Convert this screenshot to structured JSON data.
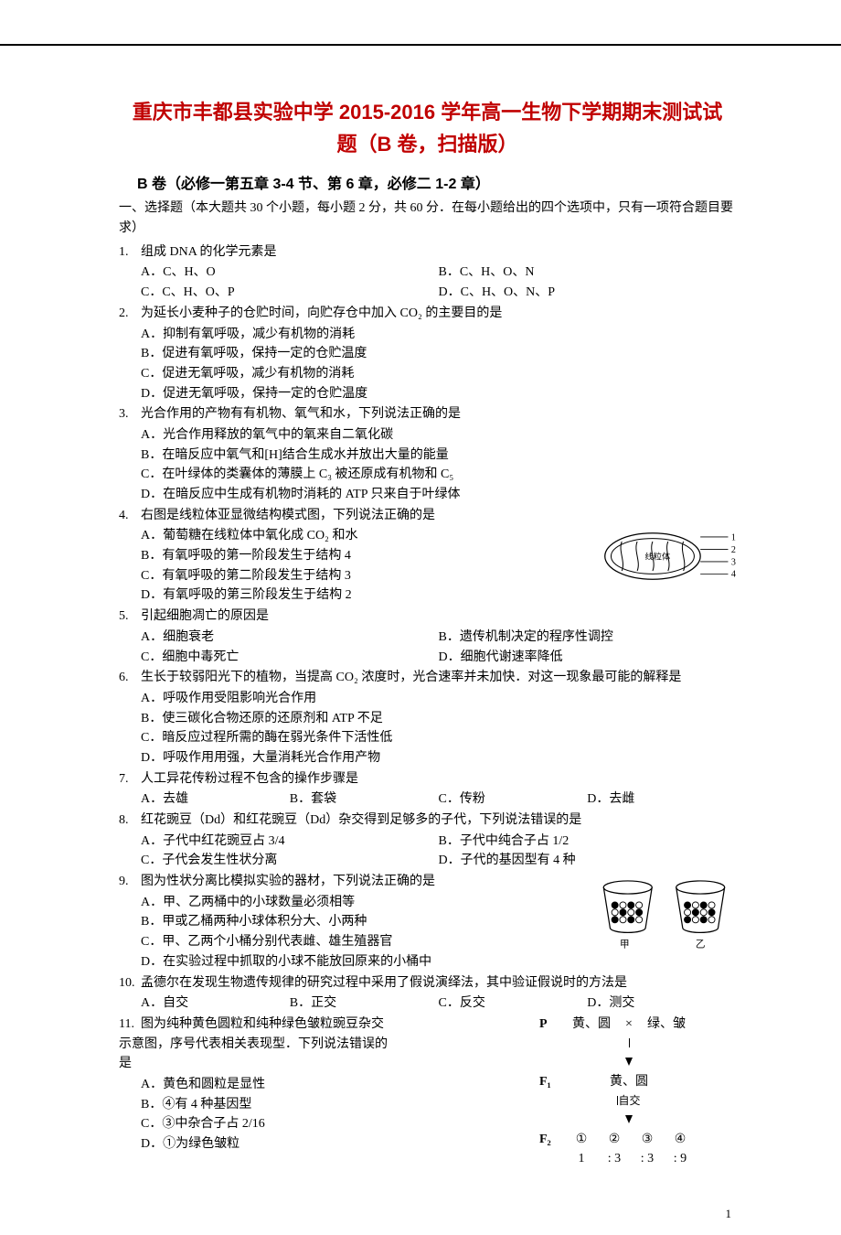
{
  "title_line1": "重庆市丰都县实验中学 2015-2016 学年高一生物下学期期末测试试",
  "title_line2": "题（B 卷，扫描版）",
  "section": "B 卷（必修一第五章 3-4 节、第 6 章，必修二 1-2 章）",
  "instruction": "一、选择题（本大题共 30 个小题，每小题 2 分，共 60 分．在每小题给出的四个选项中，只有一项符合题目要求）",
  "page_number": "1",
  "colors": {
    "title": "#c00000",
    "text": "#000000",
    "rule": "#000000",
    "background": "#ffffff"
  },
  "questions": [
    {
      "n": "1.",
      "stem": "组成 DNA 的化学元素是",
      "opts": [
        "A．C、H、O",
        "B．C、H、O、N",
        "C．C、H、O、P",
        "D．C、H、O、N、P"
      ],
      "layout": "half"
    },
    {
      "n": "2.",
      "stem": "为延长小麦种子的仓贮时间，向贮存仓中加入 CO₂ 的主要目的是",
      "opts": [
        "A．抑制有氧呼吸，减少有机物的消耗",
        "B．促进有氧呼吸，保持一定的仓贮温度",
        "C．促进无氧呼吸，减少有机物的消耗",
        "D．促进无氧呼吸，保持一定的仓贮温度"
      ],
      "layout": "full"
    },
    {
      "n": "3.",
      "stem": "光合作用的产物有有机物、氧气和水，下列说法正确的是",
      "opts": [
        "A．光合作用释放的氧气中的氧来自二氧化碳",
        "B．在暗反应中氧气和[H]结合生成水并放出大量的能量",
        "C．在叶绿体的类囊体的薄膜上 C₃ 被还原成有机物和 C₅",
        "D．在暗反应中生成有机物时消耗的 ATP 只来自于叶绿体"
      ],
      "layout": "full"
    },
    {
      "n": "4.",
      "stem": "右图是线粒体亚显微结构模式图，下列说法正确的是",
      "opts": [
        "A．葡萄糖在线粒体中氧化成 CO₂ 和水",
        "B．有氧呼吸的第一阶段发生于结构 4",
        "C．有氧呼吸的第二阶段发生于结构 3",
        "D．有氧呼吸的第三阶段发生于结构 2"
      ],
      "layout": "full",
      "figure": {
        "kind": "mitochondrion",
        "labels": [
          "1",
          "2",
          "3",
          "4"
        ],
        "organelle_label": "线粒体"
      }
    },
    {
      "n": "5.",
      "stem": "引起细胞凋亡的原因是",
      "opts": [
        "A．细胞衰老",
        "B．遗传机制决定的程序性调控",
        "C．细胞中毒死亡",
        "D．细胞代谢速率降低"
      ],
      "layout": "half"
    },
    {
      "n": "6.",
      "stem": "生长于较弱阳光下的植物，当提高 CO₂ 浓度时，光合速率并未加快．对这一现象最可能的解释是",
      "opts": [
        "A．呼吸作用受阻影响光合作用",
        "B．使三碳化合物还原的还原剂和 ATP 不足",
        "C．暗反应过程所需的酶在弱光条件下活性低",
        "D．呼吸作用用强，大量消耗光合作用产物"
      ],
      "layout": "full"
    },
    {
      "n": "7.",
      "stem": "人工异花传粉过程不包含的操作步骤是",
      "opts": [
        "A．去雄",
        "B．套袋",
        "C．传粉",
        "D．去雌"
      ],
      "layout": "quarter"
    },
    {
      "n": "8.",
      "stem": "红花豌豆（Dd）和红花豌豆（Dd）杂交得到足够多的子代，下列说法错误的是",
      "opts": [
        "A．子代中红花豌豆占 3/4",
        "B．子代中纯合子占 1/2",
        "C．子代会发生性状分离",
        "D．子代的基因型有 4 种"
      ],
      "layout": "half"
    },
    {
      "n": "9.",
      "stem": "图为性状分离比模拟实验的器材，下列说法正确的是",
      "opts": [
        "A．甲、乙两桶中的小球数量必须相等",
        "B．甲或乙桶两种小球体积分大、小两种",
        "C．甲、乙两个小桶分别代表雌、雄生殖器官",
        "D．在实验过程中抓取的小球不能放回原来的小桶中"
      ],
      "layout": "full",
      "figure": {
        "kind": "buckets",
        "left_label": "甲",
        "right_label": "乙"
      }
    },
    {
      "n": "10.",
      "stem": "孟德尔在发现生物遗传规律的研究过程中采用了假说演绎法，其中验证假说时的方法是",
      "opts": [
        "A．自交",
        "B．正交",
        "C．反交",
        "D．测交"
      ],
      "layout": "quarter"
    },
    {
      "n": "11.",
      "stem": "图为纯种黄色圆粒和纯种绿色皱粒豌豆杂交示意图，序号代表相关表现型．下列说法错误的是",
      "opts": [
        "A．黄色和圆粒是显性",
        "B．④有 4 种基因型",
        "C．③中杂合子占 2/16",
        "D．①为绿色皱粒"
      ],
      "layout": "full",
      "figure": {
        "kind": "cross",
        "P_left": "黄、圆",
        "cross": "×",
        "P_right": "绿、皱",
        "F1": "黄、圆",
        "self_label": "自交",
        "F2_row": [
          "①",
          "②",
          "③",
          "④"
        ],
        "ratio_row": [
          "1",
          ":",
          "3",
          ":",
          "3",
          ":",
          "9"
        ],
        "gen_labels": {
          "P": "P",
          "F1": "F₁",
          "F2": "F₂"
        }
      }
    }
  ]
}
